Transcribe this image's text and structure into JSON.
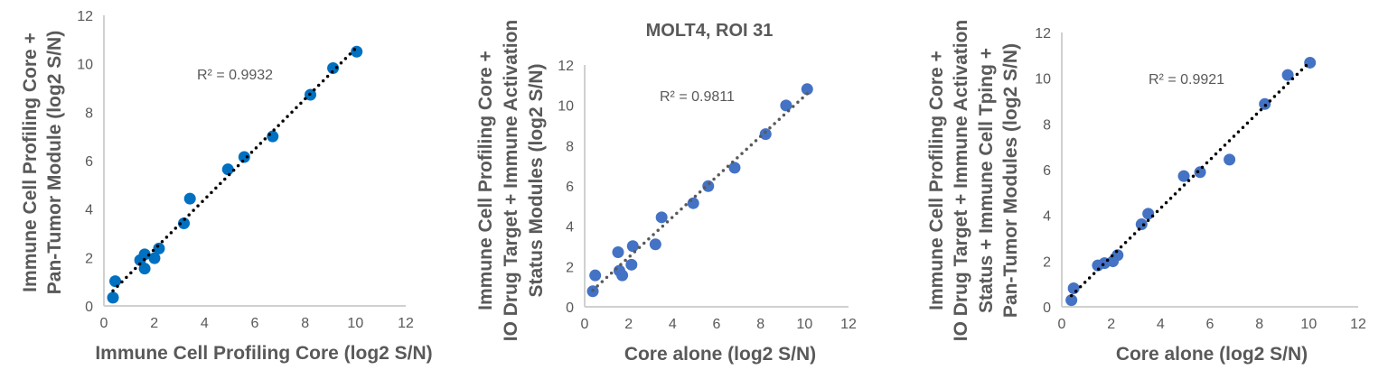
{
  "chart_data": [
    {
      "type": "scatter",
      "title": "",
      "xlabel": "Immune Cell Profiling Core (log2 S/N)",
      "ylabel": [
        "Immune Cell Profiling Core +",
        "Pan-Tumor Module (log2 S/N)"
      ],
      "xlim": [
        0,
        12
      ],
      "ylim": [
        0,
        12
      ],
      "xticks": [
        "0",
        "2",
        "4",
        "6",
        "8",
        "10",
        "12"
      ],
      "yticks": [
        "0",
        "2",
        "4",
        "6",
        "8",
        "10",
        "12"
      ],
      "annotation": "R² = 0.9932",
      "trendline": "linear, dotted",
      "grid": false,
      "point_color": "#0070C0",
      "trend_color": "#000000",
      "points": [
        [
          0.36,
          0.34
        ],
        [
          0.45,
          1.02
        ],
        [
          1.44,
          1.89
        ],
        [
          1.62,
          2.13
        ],
        [
          1.62,
          1.54
        ],
        [
          2.01,
          1.97
        ],
        [
          2.19,
          2.37
        ],
        [
          3.18,
          3.41
        ],
        [
          3.42,
          4.43
        ],
        [
          4.93,
          5.64
        ],
        [
          5.58,
          6.15
        ],
        [
          6.71,
          7.0
        ],
        [
          8.21,
          8.72
        ],
        [
          9.11,
          9.82
        ],
        [
          10.05,
          10.5
        ]
      ]
    },
    {
      "type": "scatter",
      "title": "MOLT4, ROI 31",
      "xlabel": "Core alone (log2 S/N)",
      "ylabel": [
        "Immune Cell Profiling Core +",
        "IO Drug Target + Immune Activation",
        "Status Modules (log2 S/N)"
      ],
      "xlim": [
        0,
        12
      ],
      "ylim": [
        0,
        12
      ],
      "xticks": [
        "0",
        "2",
        "4",
        "6",
        "8",
        "10",
        "12"
      ],
      "yticks": [
        "0",
        "2",
        "4",
        "6",
        "8",
        "10",
        "12"
      ],
      "annotation": "R² = 0.9811",
      "trendline": "linear, dotted",
      "grid": false,
      "point_color": "#4472C4",
      "trend_color": "#595959",
      "points": [
        [
          0.37,
          0.77
        ],
        [
          0.48,
          1.56
        ],
        [
          1.52,
          2.71
        ],
        [
          1.58,
          1.79
        ],
        [
          1.71,
          1.56
        ],
        [
          2.13,
          2.09
        ],
        [
          2.19,
          3.01
        ],
        [
          3.22,
          3.1
        ],
        [
          3.5,
          4.44
        ],
        [
          4.94,
          5.14
        ],
        [
          5.62,
          5.99
        ],
        [
          6.82,
          6.9
        ],
        [
          8.23,
          8.57
        ],
        [
          9.16,
          9.99
        ],
        [
          10.12,
          10.8
        ]
      ]
    },
    {
      "type": "scatter",
      "title": "",
      "xlabel": "Core alone (log2 S/N)",
      "ylabel": [
        "Immune Cell Profiling Core +",
        "IO Drug Target + Immune Activation",
        "Status + Immune Cell Tping +",
        "Pan-Tumor Modules (log2 S/N)"
      ],
      "xlim": [
        0,
        12
      ],
      "ylim": [
        0,
        12
      ],
      "xticks": [
        "0",
        "2",
        "4",
        "6",
        "8",
        "10",
        "12"
      ],
      "yticks": [
        "0",
        "2",
        "4",
        "6",
        "8",
        "10",
        "12"
      ],
      "annotation": "R² = 0.9921",
      "trendline": "linear, dotted",
      "grid": false,
      "point_color": "#4472C4",
      "trend_color": "#000000",
      "points": [
        [
          0.39,
          0.29
        ],
        [
          0.48,
          0.81
        ],
        [
          1.46,
          1.81
        ],
        [
          1.73,
          1.91
        ],
        [
          2.07,
          1.99
        ],
        [
          2.26,
          2.26
        ],
        [
          3.23,
          3.61
        ],
        [
          3.5,
          4.07
        ],
        [
          4.94,
          5.72
        ],
        [
          5.6,
          5.89
        ],
        [
          6.79,
          6.44
        ],
        [
          8.22,
          8.87
        ],
        [
          9.15,
          10.14
        ],
        [
          10.05,
          10.68
        ]
      ]
    }
  ]
}
